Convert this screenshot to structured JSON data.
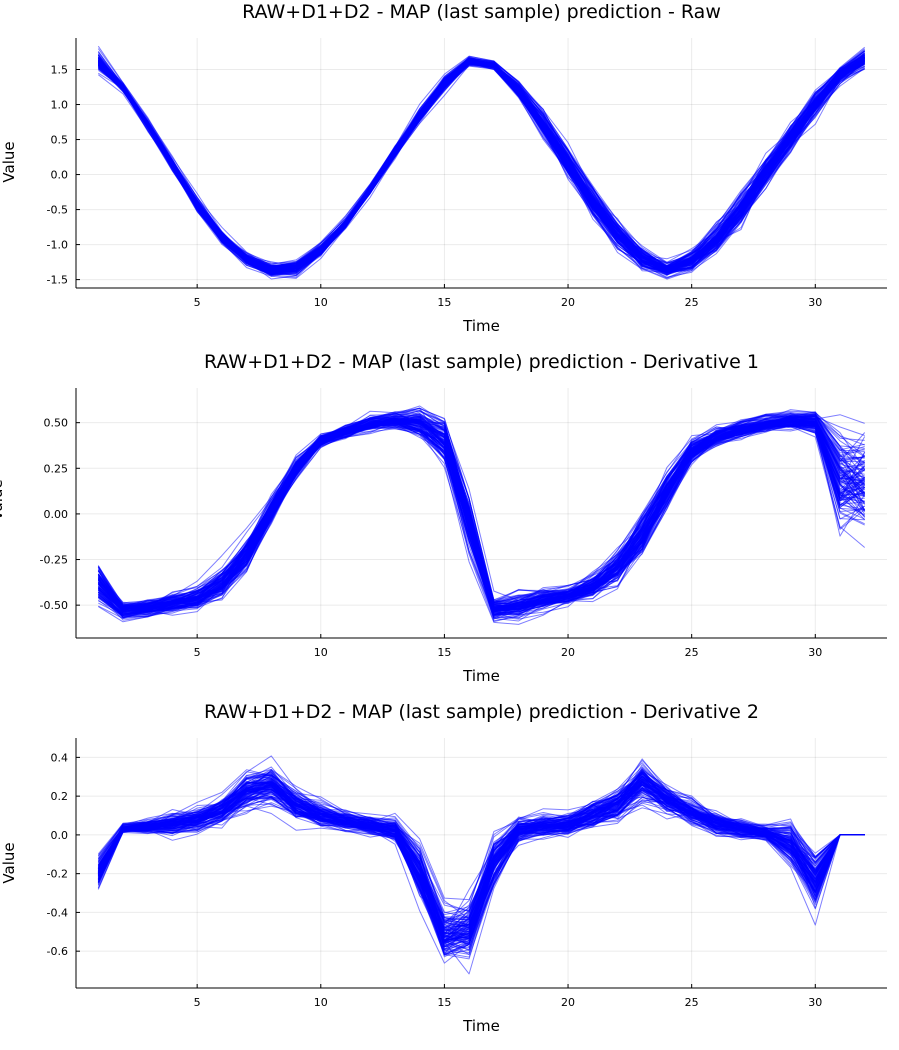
{
  "chart_data": [
    {
      "type": "line",
      "title": "RAW+D1+D2 - MAP (last sample) prediction - Raw",
      "xlabel": "Time",
      "ylabel": "Value",
      "xlim": [
        0.1,
        32.9
      ],
      "ylim": [
        -1.62,
        1.95
      ],
      "xticks": [
        5,
        10,
        15,
        20,
        25,
        30
      ],
      "yticks": [
        -1.5,
        -1.0,
        -0.5,
        0.0,
        0.5,
        1.0,
        1.5
      ],
      "ytick_labels": [
        "-1.5",
        "-1.0",
        "-0.5",
        "0.0",
        "0.5",
        "1.0",
        "1.5"
      ],
      "grid": true,
      "legend": "none",
      "line_color": "#0000ff",
      "line_opacity": 0.5,
      "series_count": 120,
      "x": [
        1,
        2,
        3,
        4,
        5,
        6,
        7,
        8,
        9,
        10,
        11,
        12,
        13,
        14,
        15,
        16,
        17,
        18,
        19,
        20,
        21,
        22,
        23,
        24,
        25,
        26,
        27,
        28,
        29,
        30,
        31,
        32
      ],
      "mean": [
        1.62,
        1.25,
        0.72,
        0.15,
        -0.42,
        -0.88,
        -1.2,
        -1.37,
        -1.33,
        -1.08,
        -0.7,
        -0.22,
        0.32,
        0.85,
        1.3,
        1.62,
        1.56,
        1.2,
        0.72,
        0.18,
        -0.38,
        -0.85,
        -1.18,
        -1.35,
        -1.22,
        -0.92,
        -0.5,
        0.02,
        0.52,
        1.0,
        1.42,
        1.65
      ],
      "spread": [
        0.14,
        0.06,
        0.07,
        0.08,
        0.09,
        0.08,
        0.07,
        0.08,
        0.09,
        0.07,
        0.06,
        0.06,
        0.07,
        0.08,
        0.09,
        0.05,
        0.05,
        0.1,
        0.16,
        0.18,
        0.17,
        0.16,
        0.12,
        0.09,
        0.12,
        0.16,
        0.18,
        0.18,
        0.18,
        0.16,
        0.1,
        0.12
      ]
    },
    {
      "type": "line",
      "title": "RAW+D1+D2 - MAP (last sample) prediction - Derivative 1",
      "xlabel": "Time",
      "ylabel": "Value",
      "xlim": [
        0.1,
        32.9
      ],
      "ylim": [
        -0.68,
        0.69
      ],
      "xticks": [
        5,
        10,
        15,
        20,
        25,
        30
      ],
      "yticks": [
        -0.5,
        -0.25,
        0.0,
        0.25,
        0.5
      ],
      "ytick_labels": [
        "-0.50",
        "-0.25",
        "0.00",
        "0.25",
        "0.50"
      ],
      "grid": true,
      "legend": "none",
      "line_color": "#0000ff",
      "line_opacity": 0.5,
      "series_count": 120,
      "x": [
        1,
        2,
        3,
        4,
        5,
        6,
        7,
        8,
        9,
        10,
        11,
        12,
        13,
        14,
        15,
        16,
        17,
        18,
        19,
        20,
        21,
        22,
        23,
        24,
        25,
        26,
        27,
        28,
        29,
        30,
        31,
        32
      ],
      "mean": [
        -0.38,
        -0.53,
        -0.52,
        -0.49,
        -0.46,
        -0.38,
        -0.22,
        0.02,
        0.25,
        0.4,
        0.45,
        0.49,
        0.51,
        0.5,
        0.4,
        -0.05,
        -0.52,
        -0.5,
        -0.47,
        -0.45,
        -0.4,
        -0.3,
        -0.12,
        0.12,
        0.34,
        0.42,
        0.46,
        0.49,
        0.51,
        0.5,
        0.18,
        0.16
      ],
      "spread": [
        0.1,
        0.04,
        0.04,
        0.04,
        0.05,
        0.07,
        0.08,
        0.06,
        0.05,
        0.03,
        0.03,
        0.04,
        0.04,
        0.07,
        0.1,
        0.12,
        0.05,
        0.06,
        0.05,
        0.04,
        0.06,
        0.08,
        0.1,
        0.1,
        0.06,
        0.04,
        0.04,
        0.04,
        0.04,
        0.05,
        0.22,
        0.22
      ]
    },
    {
      "type": "line",
      "title": "RAW+D1+D2 - MAP (last sample) prediction - Derivative 2",
      "xlabel": "Time",
      "ylabel": "Value",
      "xlim": [
        0.1,
        32.9
      ],
      "ylim": [
        -0.79,
        0.5
      ],
      "xticks": [
        5,
        10,
        15,
        20,
        25,
        30
      ],
      "yticks": [
        -0.6,
        -0.4,
        -0.2,
        0.0,
        0.2,
        0.4
      ],
      "ytick_labels": [
        "-0.6",
        "-0.4",
        "-0.2",
        "0.0",
        "0.2",
        "0.4"
      ],
      "grid": true,
      "legend": "none",
      "line_color": "#0000ff",
      "line_opacity": 0.5,
      "series_count": 120,
      "x": [
        1,
        2,
        3,
        4,
        5,
        6,
        7,
        8,
        9,
        10,
        11,
        12,
        13,
        14,
        15,
        16,
        17,
        18,
        19,
        20,
        21,
        22,
        23,
        24,
        25,
        26,
        27,
        28,
        29,
        30,
        31,
        32
      ],
      "mean": [
        -0.2,
        0.03,
        0.04,
        0.05,
        0.07,
        0.12,
        0.22,
        0.25,
        0.15,
        0.1,
        0.07,
        0.05,
        0.02,
        -0.2,
        -0.52,
        -0.5,
        -0.15,
        0.02,
        0.04,
        0.05,
        0.1,
        0.15,
        0.27,
        0.18,
        0.12,
        0.06,
        0.03,
        0.01,
        -0.05,
        -0.25,
        0.0,
        0.0
      ],
      "spread": [
        0.08,
        0.02,
        0.03,
        0.05,
        0.05,
        0.06,
        0.08,
        0.08,
        0.06,
        0.05,
        0.04,
        0.04,
        0.05,
        0.12,
        0.12,
        0.12,
        0.1,
        0.05,
        0.05,
        0.05,
        0.06,
        0.07,
        0.09,
        0.07,
        0.06,
        0.05,
        0.04,
        0.03,
        0.1,
        0.12,
        0.0,
        0.0
      ]
    }
  ]
}
